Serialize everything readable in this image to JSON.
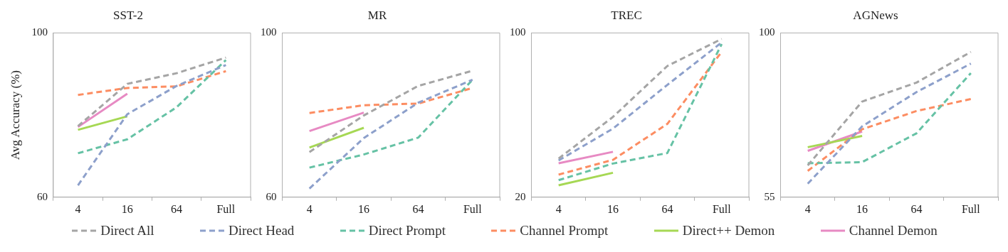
{
  "chart_data": [
    {
      "type": "line",
      "title": "SST-2",
      "ylabel": "Avg Accuracy (%)",
      "categories": [
        "4",
        "16",
        "64",
        "Full"
      ],
      "ylim": [
        60,
        100
      ],
      "yticks": [
        60,
        100
      ],
      "grid": false,
      "legend": "bottom",
      "marker": "none",
      "series": [
        {
          "name": "Direct All",
          "color": "#a5a5a5",
          "line_style": "dashed",
          "values": [
            77.3,
            87.6,
            90.2,
            94.0
          ]
        },
        {
          "name": "Direct Head",
          "color": "#8da0cb",
          "line_style": "dashed",
          "values": [
            62.9,
            80.2,
            87.1,
            92.2
          ]
        },
        {
          "name": "Direct Prompt",
          "color": "#66c2a5",
          "line_style": "dashed",
          "values": [
            70.7,
            74.1,
            81.9,
            93.4
          ]
        },
        {
          "name": "Channel Prompt",
          "color": "#fc8d62",
          "line_style": "dashed",
          "values": [
            84.9,
            86.6,
            87.0,
            90.7
          ]
        },
        {
          "name": "Direct++ Demon",
          "color": "#a6d854",
          "line_style": "solid",
          "values": [
            76.4,
            79.7,
            null,
            null
          ]
        },
        {
          "name": "Channel Demon",
          "color": "#e78ac3",
          "line_style": "solid",
          "values": [
            77.1,
            85.2,
            null,
            null
          ]
        }
      ]
    },
    {
      "type": "line",
      "title": "MR",
      "categories": [
        "4",
        "16",
        "64",
        "Full"
      ],
      "ylim": [
        60,
        100
      ],
      "yticks": [
        60,
        100
      ],
      "grid": false,
      "marker": "none",
      "series": [
        {
          "color": "#a5a5a5",
          "line_style": "dashed",
          "values": [
            71.0,
            79.9,
            87.1,
            90.8
          ]
        },
        {
          "color": "#8da0cb",
          "line_style": "dashed",
          "values": [
            62.1,
            74.4,
            83.0,
            88.6
          ]
        },
        {
          "color": "#66c2a5",
          "line_style": "dashed",
          "values": [
            67.2,
            70.4,
            74.5,
            88.6
          ]
        },
        {
          "color": "#fc8d62",
          "line_style": "dashed",
          "values": [
            80.5,
            82.4,
            82.8,
            86.6
          ]
        },
        {
          "color": "#a6d854",
          "line_style": "solid",
          "values": [
            72.1,
            76.9,
            null,
            null
          ]
        },
        {
          "color": "#e78ac3",
          "line_style": "solid",
          "values": [
            76.1,
            80.6,
            null,
            null
          ]
        }
      ]
    },
    {
      "type": "line",
      "title": "TREC",
      "categories": [
        "4",
        "16",
        "64",
        "Full"
      ],
      "ylim": [
        20,
        100
      ],
      "yticks": [
        20,
        100
      ],
      "grid": false,
      "marker": "none",
      "series": [
        {
          "color": "#a5a5a5",
          "line_style": "dashed",
          "values": [
            38.8,
            59.1,
            83.9,
            97.1
          ]
        },
        {
          "color": "#8da0cb",
          "line_style": "dashed",
          "values": [
            37.9,
            53.4,
            74.7,
            95.4
          ]
        },
        {
          "color": "#66c2a5",
          "line_style": "dashed",
          "values": [
            28.3,
            36.4,
            41.5,
            94.6
          ]
        },
        {
          "color": "#fc8d62",
          "line_style": "dashed",
          "values": [
            31.0,
            38.2,
            55.7,
            90.8
          ]
        },
        {
          "color": "#a6d854",
          "line_style": "solid",
          "values": [
            25.8,
            31.9,
            null,
            null
          ]
        },
        {
          "color": "#e78ac3",
          "line_style": "solid",
          "values": [
            36.5,
            42.1,
            null,
            null
          ]
        }
      ]
    },
    {
      "type": "line",
      "title": "AGNews",
      "categories": [
        "4",
        "16",
        "64",
        "Full"
      ],
      "ylim": [
        55,
        100
      ],
      "yticks": [
        55,
        100
      ],
      "grid": false,
      "marker": "none",
      "series": [
        {
          "color": "#a5a5a5",
          "line_style": "dashed",
          "values": [
            63.7,
            81.2,
            86.4,
            94.8
          ]
        },
        {
          "color": "#8da0cb",
          "line_style": "dashed",
          "values": [
            58.7,
            74.4,
            83.8,
            91.6
          ]
        },
        {
          "color": "#66c2a5",
          "line_style": "dashed",
          "values": [
            64.3,
            64.6,
            72.5,
            89.0
          ]
        },
        {
          "color": "#fc8d62",
          "line_style": "dashed",
          "values": [
            62.2,
            73.6,
            78.6,
            81.9
          ]
        },
        {
          "color": "#a6d854",
          "line_style": "solid",
          "values": [
            68.7,
            71.8,
            null,
            null
          ]
        },
        {
          "color": "#e78ac3",
          "line_style": "solid",
          "values": [
            67.7,
            73.0,
            null,
            null
          ]
        }
      ]
    }
  ]
}
